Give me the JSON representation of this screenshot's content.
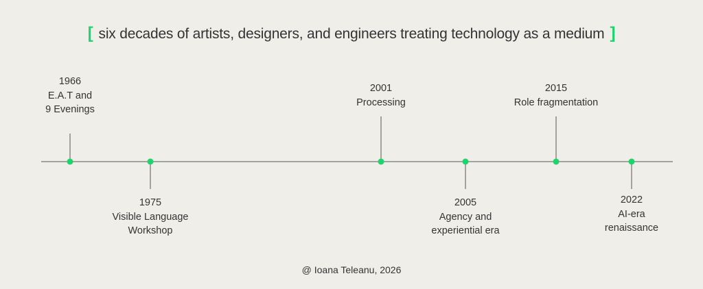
{
  "header": {
    "open_bracket": "[",
    "title": "six decades of artists, designers, and engineers treating technology as a medium",
    "close_bracket": "]"
  },
  "colors": {
    "accent": "#1fd46f",
    "line": "#555555",
    "background": "#efeee9",
    "text": "#333333"
  },
  "events": [
    {
      "year": "1966",
      "lines": [
        "E.A.T and",
        "9 Evenings"
      ],
      "side": "above"
    },
    {
      "year": "1975",
      "lines": [
        "Visible Language",
        "Workshop"
      ],
      "side": "below"
    },
    {
      "year": "2001",
      "lines": [
        "Processing"
      ],
      "side": "above"
    },
    {
      "year": "2005",
      "lines": [
        "Agency and",
        "experiential era"
      ],
      "side": "below"
    },
    {
      "year": "2015",
      "lines": [
        "Role fragmentation"
      ],
      "side": "above"
    },
    {
      "year": "2022",
      "lines": [
        "AI-era",
        "renaissance"
      ],
      "side": "below"
    }
  ],
  "footer": {
    "credit": "@ Ioana Teleanu, 2026"
  }
}
